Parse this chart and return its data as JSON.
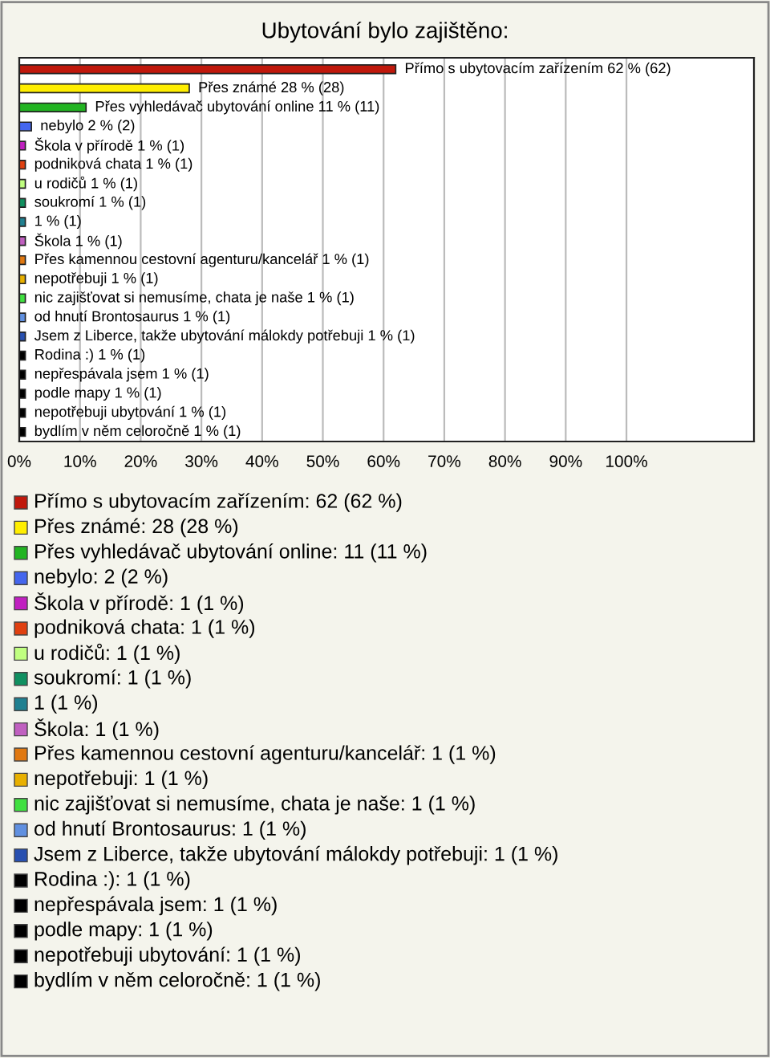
{
  "chart_data": {
    "type": "bar",
    "orientation": "horizontal",
    "title": "Ubytování bylo zajištěno:",
    "categories": [
      "Přímo s ubytovacím zařízením",
      "Přes známé",
      "Přes vyhledávač ubytování online",
      "nebylo",
      "Škola v přírodě",
      "podniková chata",
      "u rodičů",
      "soukromí",
      null,
      "Škola",
      "Přes kamennou cestovní agenturu/kancelář",
      "nepotřebuji",
      "nic zajišťovat si nemusíme, chata je naše",
      "od hnutí Brontosaurus",
      "Jsem z Liberce, takže ubytování málokdy potřebuji",
      "Rodina :)",
      "nepřespávala jsem",
      "podle mapy",
      "nepotřebuji ubytování",
      "bydlím v něm celoročně"
    ],
    "values": [
      62,
      28,
      11,
      2,
      1,
      1,
      1,
      1,
      1,
      1,
      1,
      1,
      1,
      1,
      1,
      1,
      1,
      1,
      1,
      1
    ],
    "value_labels": [
      "62 % (62)",
      "28 % (28)",
      "11 % (11)",
      "2 % (2)",
      "1 % (1)",
      "1 % (1)",
      "1 % (1)",
      "1 % (1)",
      "1 % (1)",
      "1 % (1)",
      "1 % (1)",
      "1 % (1)",
      "1 % (1)",
      "1 % (1)",
      "1 % (1)",
      "1 % (1)",
      "1 % (1)",
      "1 % (1)",
      "1 % (1)",
      "1 % (1)"
    ],
    "colors": [
      "#c0180c",
      "#ffee00",
      "#22b422",
      "#4466ee",
      "#c020c0",
      "#e04010",
      "#c0ff80",
      "#109060",
      "#208090",
      "#c060c0",
      "#e07810",
      "#e8b000",
      "#40e040",
      "#6090e0",
      "#2850b0",
      "#000000",
      "#000000",
      "#000000",
      "#000000",
      "#000000"
    ],
    "xlim": [
      0,
      121
    ],
    "xticks": [
      {
        "value": 0,
        "label": "0%"
      },
      {
        "value": 10,
        "label": "10%"
      },
      {
        "value": 20,
        "label": "20%"
      },
      {
        "value": 30,
        "label": "30%"
      },
      {
        "value": 40,
        "label": "40%"
      },
      {
        "value": 50,
        "label": "50%"
      },
      {
        "value": 60,
        "label": "60%"
      },
      {
        "value": 70,
        "label": "70%"
      },
      {
        "value": 80,
        "label": "80%"
      },
      {
        "value": 90,
        "label": "90%"
      },
      {
        "value": 100,
        "label": "100%"
      }
    ],
    "grid": "x",
    "annotations": [
      "Přímo s ubytovacím zařízením: 62 (62 %)",
      "Přes známé: 28 (28 %)",
      "Přes vyhledávač ubytování online: 11 (11 %)",
      "nebylo: 2 (2 %)",
      "Škola v přírodě: 1 (1 %)",
      "podniková chata: 1 (1 %)",
      "u rodičů: 1 (1 %)",
      "soukromí: 1 (1 %)",
      "1 (1 %)",
      "Škola: 1 (1 %)",
      "Přes kamennou cestovní agenturu/kancelář: 1 (1 %)",
      "nepotřebuji: 1 (1 %)",
      "nic zajišťovat si nemusíme, chata je naše: 1 (1 %)",
      "od hnutí Brontosaurus: 1 (1 %)",
      "Jsem z Liberce, takže ubytování málokdy potřebuji: 1 (1 %)",
      "Rodina :): 1 (1 %)",
      "nepřespávala jsem: 1 (1 %)",
      "podle mapy: 1 (1 %)",
      "nepotřebuji ubytování: 1 (1 %)",
      "bydlím v něm celoročně: 1 (1 %)"
    ]
  }
}
